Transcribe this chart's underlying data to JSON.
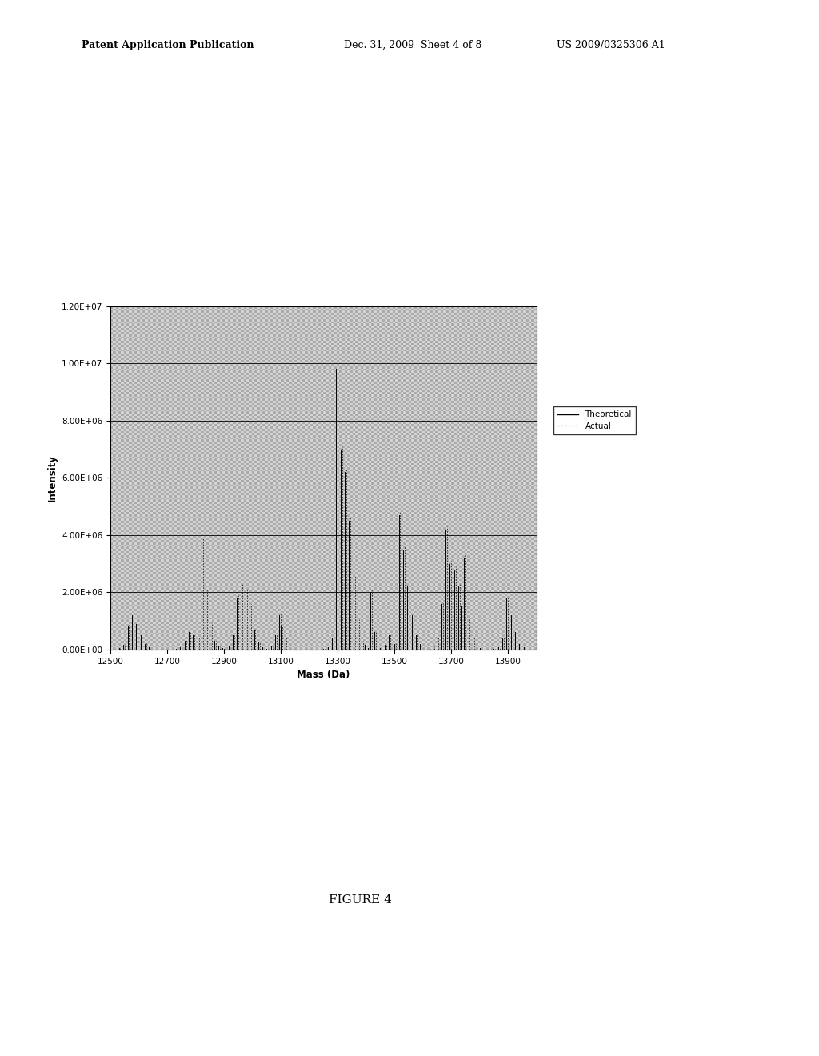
{
  "title": "FIGURE 4",
  "xlabel": "Mass (Da)",
  "ylabel": "Intensity",
  "xlim": [
    12500,
    14000
  ],
  "ylim": [
    0,
    12000000.0
  ],
  "xticks": [
    12500,
    12700,
    12900,
    13100,
    13300,
    13500,
    13700,
    13900
  ],
  "yticks": [
    0,
    2000000,
    4000000,
    6000000,
    8000000,
    10000000,
    12000000
  ],
  "ytick_labels": [
    "0.00E+00",
    "2.00E+06",
    "4.00E+06",
    "6.00E+06",
    "8.00E+06",
    "1.00E+07",
    "1.20E+07"
  ],
  "background_color": "#c8c8c8",
  "header_left": "Patent Application Publication",
  "header_mid": "Dec. 31, 2009  Sheet 4 of 8",
  "header_right": "US 2009/0325306 A1",
  "theoretical_peaks": [
    [
      12530,
      50000
    ],
    [
      12545,
      150000
    ],
    [
      12560,
      800000
    ],
    [
      12575,
      1200000
    ],
    [
      12590,
      900000
    ],
    [
      12605,
      500000
    ],
    [
      12620,
      200000
    ],
    [
      12635,
      80000
    ],
    [
      12730,
      30000
    ],
    [
      12745,
      80000
    ],
    [
      12760,
      300000
    ],
    [
      12775,
      600000
    ],
    [
      12790,
      500000
    ],
    [
      12805,
      400000
    ],
    [
      12820,
      3800000
    ],
    [
      12835,
      2000000
    ],
    [
      12850,
      900000
    ],
    [
      12865,
      300000
    ],
    [
      12880,
      100000
    ],
    [
      12895,
      50000
    ],
    [
      12900,
      30000
    ],
    [
      12915,
      100000
    ],
    [
      12930,
      500000
    ],
    [
      12945,
      1800000
    ],
    [
      12960,
      2200000
    ],
    [
      12975,
      2000000
    ],
    [
      12990,
      1500000
    ],
    [
      13005,
      700000
    ],
    [
      13020,
      250000
    ],
    [
      13035,
      80000
    ],
    [
      13050,
      30000
    ],
    [
      13065,
      100000
    ],
    [
      13080,
      500000
    ],
    [
      13095,
      1200000
    ],
    [
      13100,
      800000
    ],
    [
      13115,
      400000
    ],
    [
      13130,
      150000
    ],
    [
      13250,
      30000
    ],
    [
      13265,
      80000
    ],
    [
      13280,
      400000
    ],
    [
      13295,
      9800000
    ],
    [
      13310,
      7000000
    ],
    [
      13325,
      6200000
    ],
    [
      13340,
      4500000
    ],
    [
      13355,
      2500000
    ],
    [
      13370,
      1000000
    ],
    [
      13385,
      300000
    ],
    [
      13395,
      150000
    ],
    [
      13405,
      50000
    ],
    [
      13415,
      2000000
    ],
    [
      13430,
      600000
    ],
    [
      13450,
      50000
    ],
    [
      13465,
      150000
    ],
    [
      13480,
      500000
    ],
    [
      13500,
      200000
    ],
    [
      13515,
      4700000
    ],
    [
      13530,
      3500000
    ],
    [
      13545,
      2200000
    ],
    [
      13560,
      1200000
    ],
    [
      13575,
      500000
    ],
    [
      13590,
      200000
    ],
    [
      13620,
      30000
    ],
    [
      13635,
      100000
    ],
    [
      13650,
      400000
    ],
    [
      13665,
      1600000
    ],
    [
      13680,
      4200000
    ],
    [
      13695,
      3000000
    ],
    [
      13710,
      2800000
    ],
    [
      13725,
      2200000
    ],
    [
      13735,
      1500000
    ],
    [
      13745,
      3200000
    ],
    [
      13760,
      1000000
    ],
    [
      13775,
      400000
    ],
    [
      13790,
      150000
    ],
    [
      13800,
      50000
    ],
    [
      13850,
      30000
    ],
    [
      13865,
      80000
    ],
    [
      13880,
      400000
    ],
    [
      13895,
      1800000
    ],
    [
      13910,
      1200000
    ],
    [
      13925,
      600000
    ],
    [
      13940,
      200000
    ],
    [
      13955,
      80000
    ]
  ],
  "actual_peaks": [
    [
      12530,
      60000
    ],
    [
      12547,
      180000
    ],
    [
      12562,
      850000
    ],
    [
      12577,
      1250000
    ],
    [
      12592,
      950000
    ],
    [
      12607,
      520000
    ],
    [
      12622,
      210000
    ],
    [
      12732,
      35000
    ],
    [
      12748,
      90000
    ],
    [
      12763,
      320000
    ],
    [
      12778,
      650000
    ],
    [
      12793,
      520000
    ],
    [
      12808,
      420000
    ],
    [
      12823,
      3900000
    ],
    [
      12838,
      2100000
    ],
    [
      12853,
      950000
    ],
    [
      12868,
      310000
    ],
    [
      12883,
      110000
    ],
    [
      12902,
      35000
    ],
    [
      12917,
      110000
    ],
    [
      12932,
      520000
    ],
    [
      12947,
      1900000
    ],
    [
      12962,
      2300000
    ],
    [
      12977,
      2100000
    ],
    [
      12992,
      1600000
    ],
    [
      13007,
      720000
    ],
    [
      13022,
      260000
    ],
    [
      13067,
      110000
    ],
    [
      13082,
      520000
    ],
    [
      13097,
      1250000
    ],
    [
      13102,
      820000
    ],
    [
      13117,
      420000
    ],
    [
      13252,
      35000
    ],
    [
      13267,
      90000
    ],
    [
      13282,
      420000
    ],
    [
      13297,
      9900000
    ],
    [
      13312,
      7100000
    ],
    [
      13327,
      6300000
    ],
    [
      13342,
      4600000
    ],
    [
      13357,
      2600000
    ],
    [
      13372,
      1050000
    ],
    [
      13387,
      310000
    ],
    [
      13417,
      2100000
    ],
    [
      13432,
      650000
    ],
    [
      13452,
      55000
    ],
    [
      13467,
      160000
    ],
    [
      13482,
      520000
    ],
    [
      13502,
      210000
    ],
    [
      13517,
      4800000
    ],
    [
      13532,
      3600000
    ],
    [
      13547,
      2300000
    ],
    [
      13562,
      1250000
    ],
    [
      13577,
      520000
    ],
    [
      13622,
      35000
    ],
    [
      13637,
      110000
    ],
    [
      13652,
      420000
    ],
    [
      13667,
      1650000
    ],
    [
      13682,
      4300000
    ],
    [
      13697,
      3100000
    ],
    [
      13712,
      2900000
    ],
    [
      13727,
      2300000
    ],
    [
      13747,
      3300000
    ],
    [
      13762,
      1050000
    ],
    [
      13777,
      420000
    ],
    [
      13852,
      35000
    ],
    [
      13867,
      90000
    ],
    [
      13882,
      420000
    ],
    [
      13897,
      1850000
    ],
    [
      13912,
      1250000
    ],
    [
      13927,
      620000
    ],
    [
      13942,
      210000
    ]
  ],
  "check_light": "#d4d4d4",
  "check_dark": "#aaaaaa",
  "check_count": 160
}
